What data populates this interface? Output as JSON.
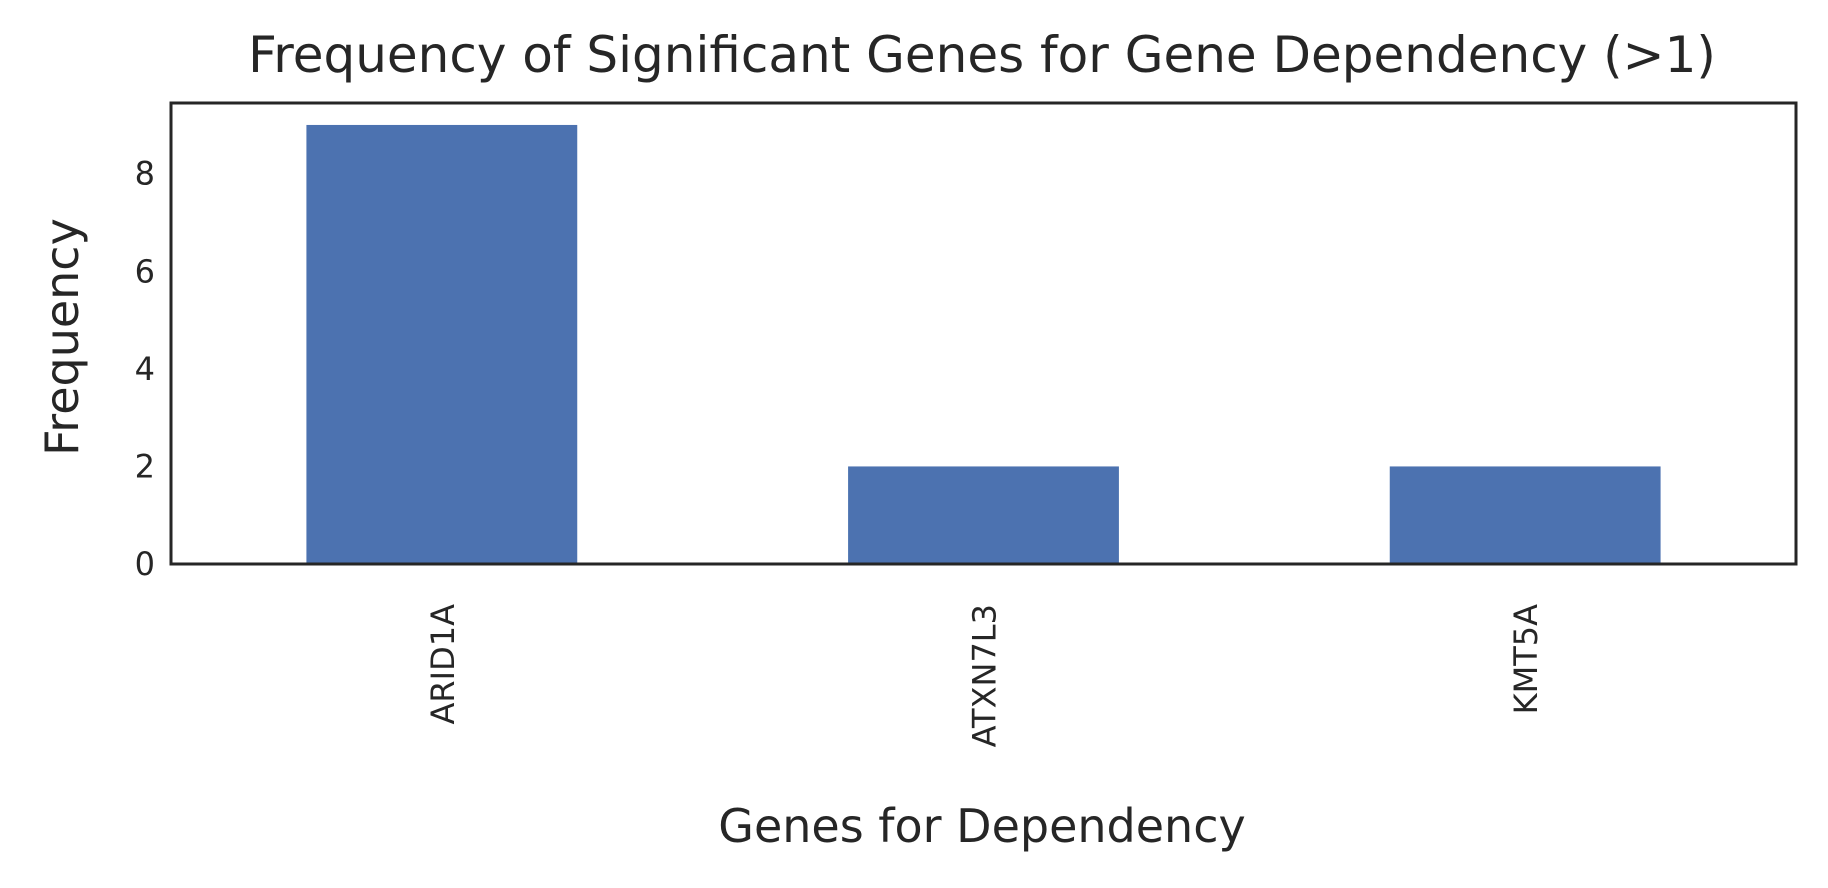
{
  "chart_data": {
    "type": "bar",
    "title": "Frequency of Significant Genes for Gene Dependency (>1)",
    "xlabel": "Genes for Dependency",
    "ylabel": "Frequency",
    "categories": [
      "ARID1A",
      "ATXN7L3",
      "KMT5A"
    ],
    "values": [
      9,
      2,
      2
    ],
    "ylim": [
      0,
      9.45
    ],
    "yticks": [
      0,
      2,
      4,
      6,
      8
    ],
    "grid": false,
    "legend": "none",
    "bar_color": "#4c72b0",
    "axes_color": "#262626"
  }
}
